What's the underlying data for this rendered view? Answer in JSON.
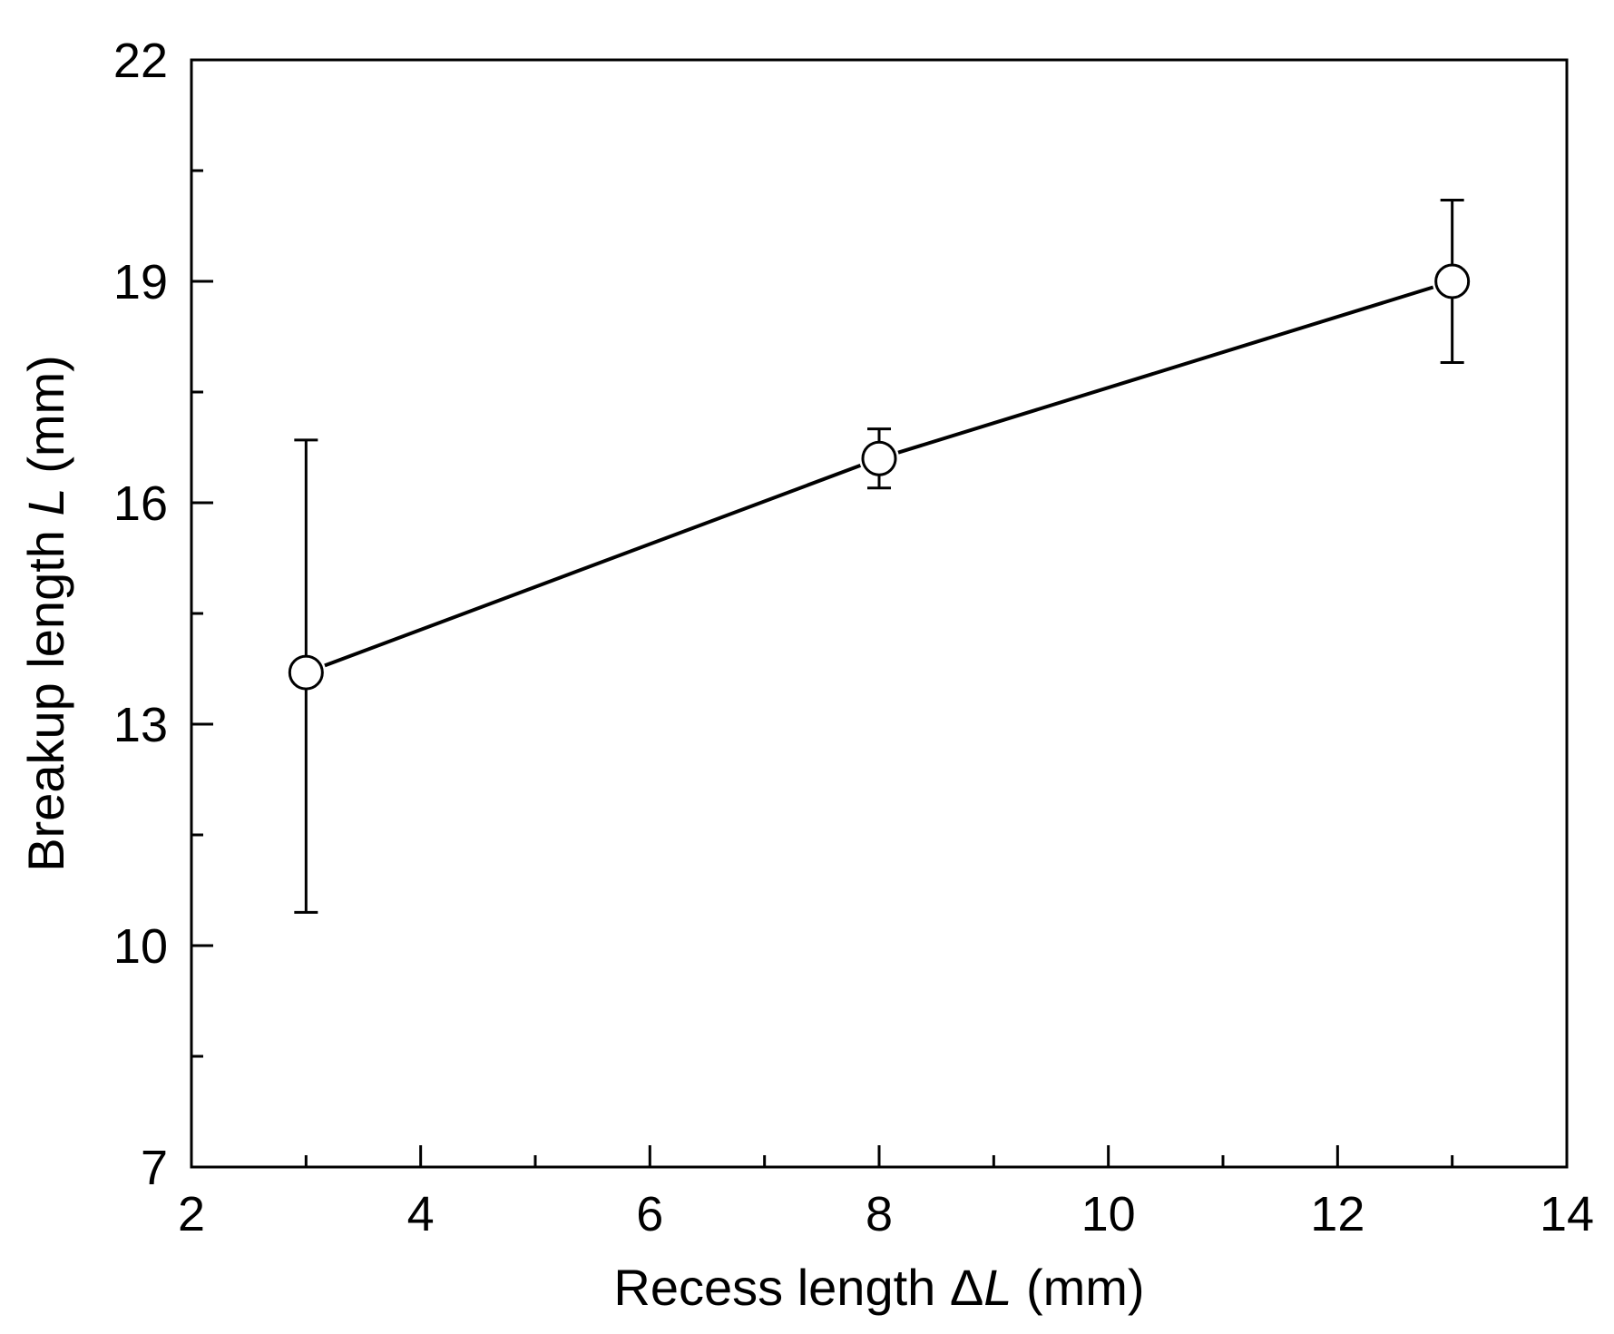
{
  "chart_data": {
    "type": "line",
    "title": "",
    "xlabel": {
      "pre": "Recess length Δ",
      "var": "L",
      "post": " (mm)"
    },
    "ylabel": {
      "pre": "Breakup length ",
      "var": "L",
      "post": " (mm)"
    },
    "xlim": [
      2,
      14
    ],
    "ylim": [
      7,
      22
    ],
    "x_major_ticks": [
      2,
      4,
      6,
      8,
      10,
      12,
      14
    ],
    "x_minor_ticks": [
      3,
      5,
      7,
      9,
      11,
      13
    ],
    "x_tick_labels": [
      "2",
      "4",
      "6",
      "8",
      "10",
      "12",
      "14"
    ],
    "y_major_ticks": [
      7,
      10,
      13,
      16,
      19,
      22
    ],
    "y_minor_ticks": [
      8.5,
      11.5,
      14.5,
      17.5,
      20.5
    ],
    "y_tick_labels": [
      "7",
      "10",
      "13",
      "16",
      "19",
      "22"
    ],
    "grid": false,
    "legend": "none",
    "series": [
      {
        "x": [
          3,
          8,
          13
        ],
        "y": [
          13.7,
          16.6,
          19.0
        ],
        "yerr_low": [
          10.45,
          16.2,
          17.9
        ],
        "yerr_high": [
          16.85,
          17.0,
          20.1
        ],
        "marker": "open-circle",
        "color": "#000000"
      }
    ]
  }
}
